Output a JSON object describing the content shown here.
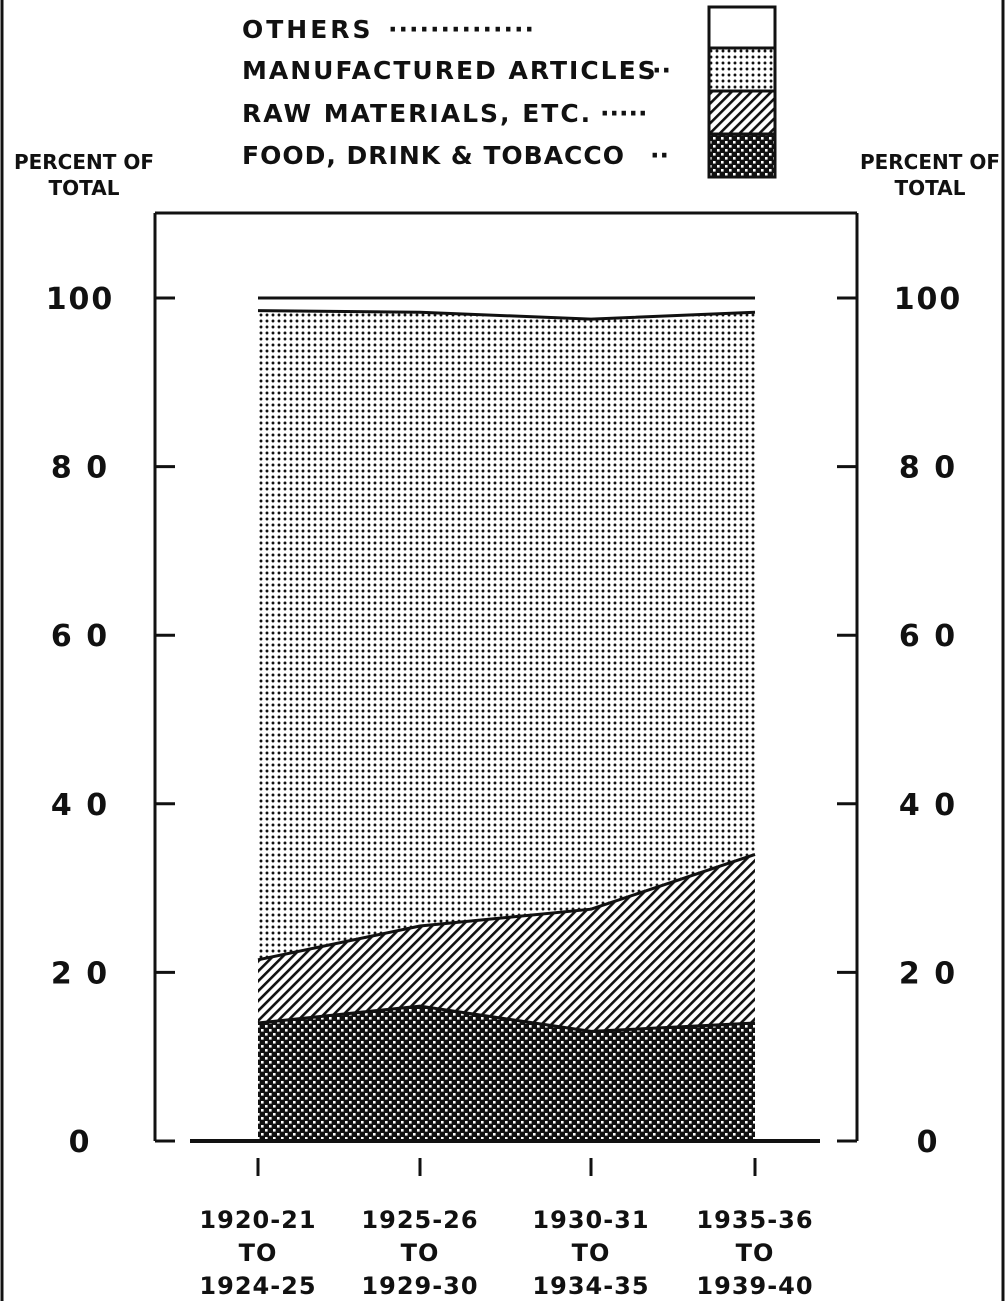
{
  "chart_data": {
    "type": "area",
    "stacked": true,
    "percent": true,
    "categories": [
      [
        "1920-21",
        "TO",
        "1924-25"
      ],
      [
        "1925-26",
        "TO",
        "1929-30"
      ],
      [
        "1930-31",
        "TO",
        "1934-35"
      ],
      [
        "1935-36",
        "TO",
        "1939-40"
      ]
    ],
    "series": [
      {
        "name": "FOOD, DRINK & TOBACCO",
        "pattern": "checker",
        "values": [
          14,
          16,
          13,
          14
        ]
      },
      {
        "name": "RAW MATERIALS, ETC.",
        "pattern": "hatch",
        "values": [
          7.5,
          9.5,
          14.5,
          20
        ]
      },
      {
        "name": "MANUFACTURED ARTICLES",
        "pattern": "dots",
        "values": [
          77,
          72.8,
          70,
          64.3
        ]
      },
      {
        "name": "OTHERS",
        "pattern": "none",
        "values": [
          1.5,
          1.7,
          2.5,
          1.7
        ]
      }
    ],
    "legend_order": [
      "OTHERS",
      "MANUFACTURED ARTICLES",
      "RAW MATERIALS, ETC.",
      "FOOD, DRINK & TOBACCO"
    ],
    "legend_leaders": [
      "··············",
      "··",
      "·····",
      "··"
    ],
    "legend_position": "top",
    "ylabel_left": [
      "PERCENT OF",
      "TOTAL"
    ],
    "ylabel_right": [
      "PERCENT OF",
      "TOTAL"
    ],
    "yticks": [
      0,
      20,
      40,
      60,
      80,
      100
    ],
    "ytick_labels": [
      "0",
      "2 0",
      "4 0",
      "6 0",
      "8 0",
      "100"
    ],
    "ylim": [
      0,
      100
    ],
    "grid": false
  }
}
